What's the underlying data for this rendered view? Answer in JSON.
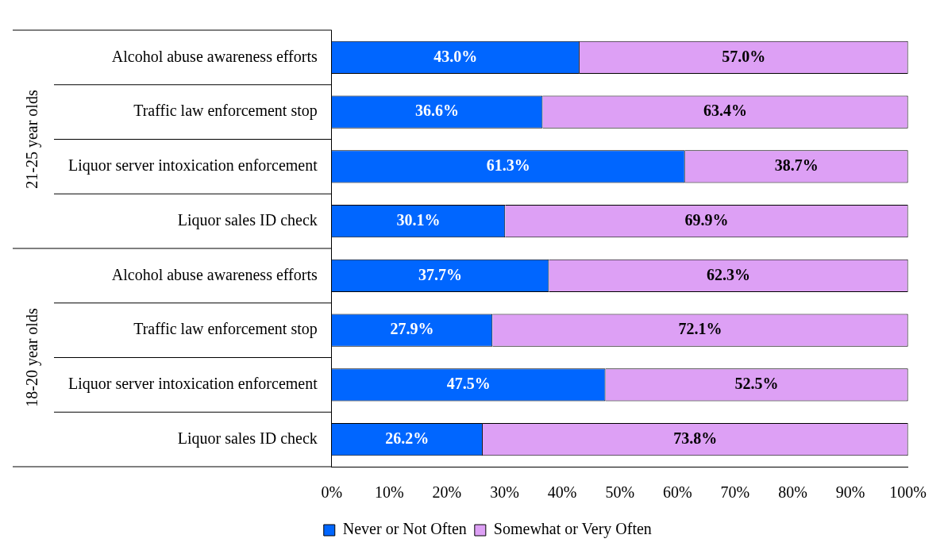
{
  "chart_data": {
    "type": "bar",
    "orientation": "horizontal",
    "stacked": true,
    "categories": [
      "Alcohol abuse awareness efforts",
      "Traffic law enforcement stop",
      "Liquor server intoxication enforcement",
      "Liquor sales ID check",
      "Alcohol abuse awareness efforts",
      "Traffic law enforcement stop",
      "Liquor server intoxication enforcement",
      "Liquor sales ID check"
    ],
    "series": [
      {
        "name": "Never or Not Often",
        "color": "#0066ff",
        "values": [
          43.0,
          36.6,
          61.3,
          30.1,
          37.7,
          27.9,
          47.5,
          26.2
        ],
        "value_labels": [
          "43.0%",
          "36.6%",
          "61.3%",
          "30.1%",
          "37.7%",
          "27.9%",
          "47.5%",
          "26.2%"
        ]
      },
      {
        "name": "Somewhat or Very Often",
        "color": "#dda0f5",
        "values": [
          57.0,
          63.4,
          38.7,
          69.9,
          62.3,
          72.1,
          52.5,
          73.8
        ],
        "value_labels": [
          "57.0%",
          "63.4%",
          "38.7%",
          "69.9%",
          "62.3%",
          "72.1%",
          "52.5%",
          "73.8%"
        ]
      }
    ],
    "xlim": [
      0,
      100
    ],
    "xticks": [
      {
        "value": 0,
        "label": "0%"
      },
      {
        "value": 10,
        "label": "10%"
      },
      {
        "value": 20,
        "label": "20%"
      },
      {
        "value": 30,
        "label": "30%"
      },
      {
        "value": 40,
        "label": "40%"
      },
      {
        "value": 50,
        "label": "50%"
      },
      {
        "value": 60,
        "label": "60%"
      },
      {
        "value": 70,
        "label": "70%"
      },
      {
        "value": 80,
        "label": "80%"
      },
      {
        "value": 90,
        "label": "90%"
      },
      {
        "value": 100,
        "label": "100%"
      }
    ],
    "annotations": [
      "21-25 year olds",
      "18-20 year olds"
    ],
    "grid": false,
    "legend": "bottom"
  }
}
